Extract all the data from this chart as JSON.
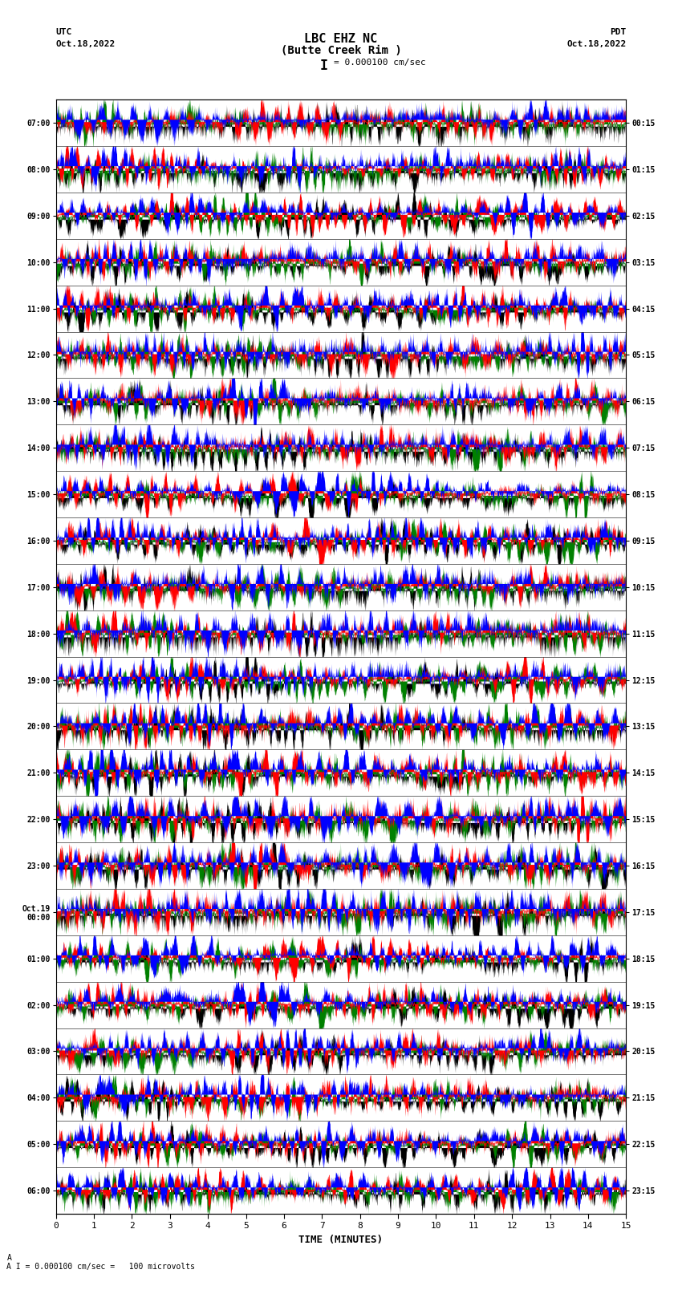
{
  "title_line1": "LBC EHZ NC",
  "title_line2": "(Butte Creek Rim )",
  "scale_text": "= 0.000100 cm/sec",
  "bottom_text": "A I = 0.000100 cm/sec =   100 microvolts",
  "utc_label": "UTC",
  "utc_date": "Oct.18,2022",
  "pdt_label": "PDT",
  "pdt_date": "Oct.18,2022",
  "xlabel": "TIME (MINUTES)",
  "left_times": [
    "07:00",
    "08:00",
    "09:00",
    "10:00",
    "11:00",
    "12:00",
    "13:00",
    "14:00",
    "15:00",
    "16:00",
    "17:00",
    "18:00",
    "19:00",
    "20:00",
    "21:00",
    "22:00",
    "23:00",
    "Oct.19\n00:00",
    "01:00",
    "02:00",
    "03:00",
    "04:00",
    "05:00",
    "06:00"
  ],
  "right_times": [
    "00:15",
    "01:15",
    "02:15",
    "03:15",
    "04:15",
    "05:15",
    "06:15",
    "07:15",
    "08:15",
    "09:15",
    "10:15",
    "11:15",
    "12:15",
    "13:15",
    "14:15",
    "15:15",
    "16:15",
    "17:15",
    "18:15",
    "19:15",
    "20:15",
    "21:15",
    "22:15",
    "23:15"
  ],
  "num_traces": 24,
  "trace_duration_minutes": 15,
  "xlim": [
    0,
    15
  ],
  "xticks": [
    0,
    1,
    2,
    3,
    4,
    5,
    6,
    7,
    8,
    9,
    10,
    11,
    12,
    13,
    14,
    15
  ],
  "colors": [
    "blue",
    "red",
    "green",
    "black"
  ],
  "bg_color": "white",
  "title_fontsize": 11,
  "label_fontsize": 8,
  "tick_fontsize": 8
}
